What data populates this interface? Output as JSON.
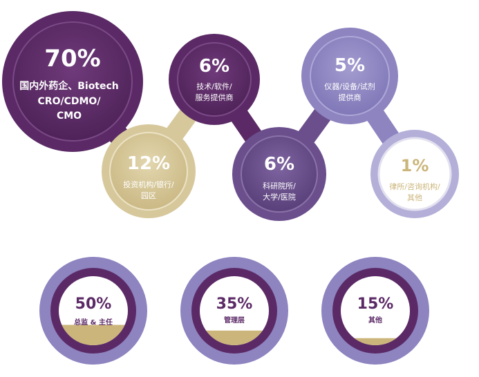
{
  "colors": {
    "dark_purple": "#5b2a66",
    "mid_purple": "#6b4f8c",
    "light_purple": "#8d84c0",
    "pale_purple": "#b3afd8",
    "beige": "#d7c89c",
    "gold_text": "#cbb57a",
    "ring_light": "#e3e1f0"
  },
  "industry": {
    "cro": {
      "pct": "70%",
      "line1": "国内外药企、Biotech",
      "line2": "CRO/CDMO/",
      "line3": "CMO"
    },
    "investment": {
      "pct": "12%",
      "line1": "投资机构/银行/",
      "line2": "园区"
    },
    "tech": {
      "pct": "6%",
      "line1": "技术/软件/",
      "line2": "服务提供商"
    },
    "research": {
      "pct": "6%",
      "line1": "科研院所/",
      "line2": "大学/医院"
    },
    "instrument": {
      "pct": "5%",
      "line1": "仪器/设备/试剂",
      "line2": "提供商"
    },
    "law": {
      "pct": "1%",
      "line1": "律所/咨询机构/",
      "line2": "其他"
    }
  },
  "position": {
    "director": {
      "pct": "50%",
      "label": "总监 & 主任",
      "fill_fraction": 0.5
    },
    "management": {
      "pct": "35%",
      "label": "管理层",
      "fill_fraction": 0.35
    },
    "other": {
      "pct": "15%",
      "label": "其他",
      "fill_fraction": 0.15
    }
  }
}
